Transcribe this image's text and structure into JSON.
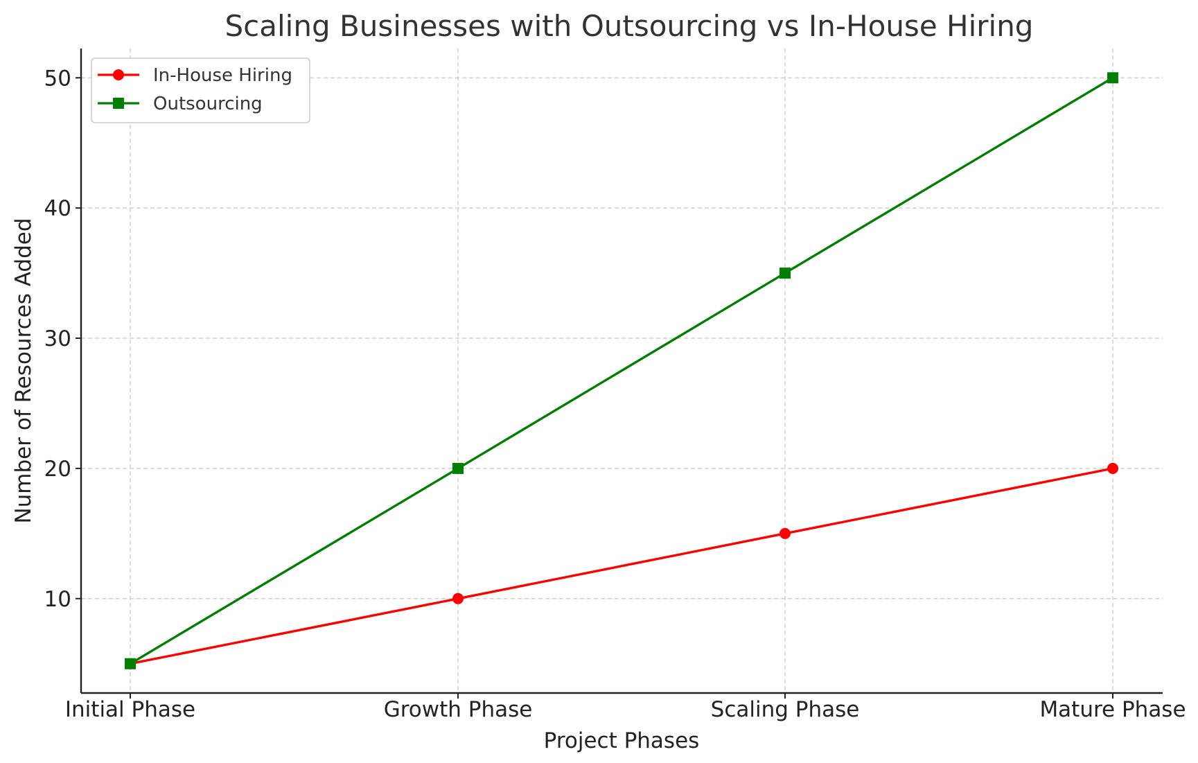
{
  "chart_data": {
    "type": "line",
    "title": "Scaling Businesses with Outsourcing vs In-House Hiring",
    "xlabel": "Project Phases",
    "ylabel": "Number of Resources Added",
    "categories": [
      "Initial Phase",
      "Growth Phase",
      "Scaling Phase",
      "Mature Phase"
    ],
    "ylim": [
      2.75,
      52.25
    ],
    "yticks": [
      10,
      20,
      30,
      40,
      50
    ],
    "grid": true,
    "legend_position": "top-left",
    "series": [
      {
        "name": "In-House Hiring",
        "values": [
          5,
          10,
          15,
          20
        ],
        "color": "#ff0000",
        "marker": "circle"
      },
      {
        "name": "Outsourcing",
        "values": [
          5,
          20,
          35,
          50
        ],
        "color": "#007f00",
        "marker": "square"
      }
    ]
  }
}
